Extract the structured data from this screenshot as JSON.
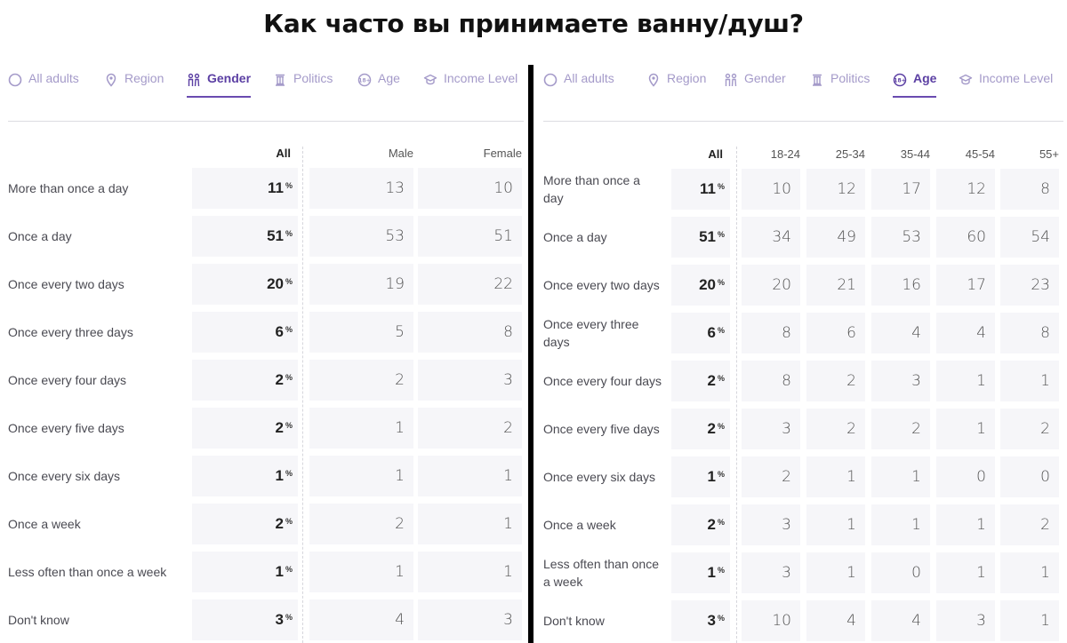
{
  "title": "Как часто вы принимаете ванну/душ?",
  "tabs": [
    {
      "id": "all",
      "label": "All adults",
      "icon": "circle-icon"
    },
    {
      "id": "region",
      "label": "Region",
      "icon": "location-pin-icon"
    },
    {
      "id": "gender",
      "label": "Gender",
      "icon": "gender-icon"
    },
    {
      "id": "politics",
      "label": "Politics",
      "icon": "pillar-icon"
    },
    {
      "id": "age",
      "label": "Age",
      "icon": "age-18-plus-icon"
    },
    {
      "id": "income",
      "label": "Income Level",
      "icon": "graduation-cap-icon"
    }
  ],
  "colors": {
    "accent": "#5b3fa3",
    "tab_inactive": "#a49ac9",
    "cell_bg": "#f6f6f9"
  },
  "left": {
    "active_tab": "gender",
    "headers": {
      "all": "All",
      "cols": [
        "Male",
        "Female"
      ]
    },
    "rows": [
      {
        "label": "More than once a day",
        "all": "11",
        "vals": [
          "13",
          "10"
        ]
      },
      {
        "label": "Once a day",
        "all": "51",
        "vals": [
          "53",
          "51"
        ]
      },
      {
        "label": "Once every two days",
        "all": "20",
        "vals": [
          "19",
          "22"
        ]
      },
      {
        "label": "Once every three days",
        "all": "6",
        "vals": [
          "5",
          "8"
        ]
      },
      {
        "label": "Once every four days",
        "all": "2",
        "vals": [
          "2",
          "3"
        ]
      },
      {
        "label": "Once every five days",
        "all": "2",
        "vals": [
          "1",
          "2"
        ]
      },
      {
        "label": "Once every six days",
        "all": "1",
        "vals": [
          "1",
          "1"
        ]
      },
      {
        "label": "Once a week",
        "all": "2",
        "vals": [
          "2",
          "1"
        ]
      },
      {
        "label": "Less often than once a week",
        "all": "1",
        "vals": [
          "1",
          "1"
        ]
      },
      {
        "label": "Don't know",
        "all": "3",
        "vals": [
          "4",
          "3"
        ]
      }
    ]
  },
  "right": {
    "active_tab": "age",
    "headers": {
      "all": "All",
      "cols": [
        "18-24",
        "25-34",
        "35-44",
        "45-54",
        "55+"
      ]
    },
    "rows": [
      {
        "label": "More than once a day",
        "all": "11",
        "vals": [
          "10",
          "12",
          "17",
          "12",
          "8"
        ]
      },
      {
        "label": "Once a day",
        "all": "51",
        "vals": [
          "34",
          "49",
          "53",
          "60",
          "54"
        ]
      },
      {
        "label": "Once every two days",
        "all": "20",
        "vals": [
          "20",
          "21",
          "16",
          "17",
          "23"
        ]
      },
      {
        "label": "Once every three days",
        "all": "6",
        "vals": [
          "8",
          "6",
          "4",
          "4",
          "8"
        ]
      },
      {
        "label": "Once every four days",
        "all": "2",
        "vals": [
          "8",
          "2",
          "3",
          "1",
          "1"
        ]
      },
      {
        "label": "Once every five days",
        "all": "2",
        "vals": [
          "3",
          "2",
          "2",
          "1",
          "2"
        ]
      },
      {
        "label": "Once every six days",
        "all": "1",
        "vals": [
          "2",
          "1",
          "1",
          "0",
          "0"
        ]
      },
      {
        "label": "Once a week",
        "all": "2",
        "vals": [
          "3",
          "1",
          "1",
          "1",
          "2"
        ]
      },
      {
        "label": "Less often than once a week",
        "all": "1",
        "vals": [
          "3",
          "1",
          "0",
          "1",
          "1"
        ]
      },
      {
        "label": "Don't know",
        "all": "3",
        "vals": [
          "10",
          "4",
          "4",
          "3",
          "1"
        ]
      }
    ]
  },
  "percent_sign": "%"
}
